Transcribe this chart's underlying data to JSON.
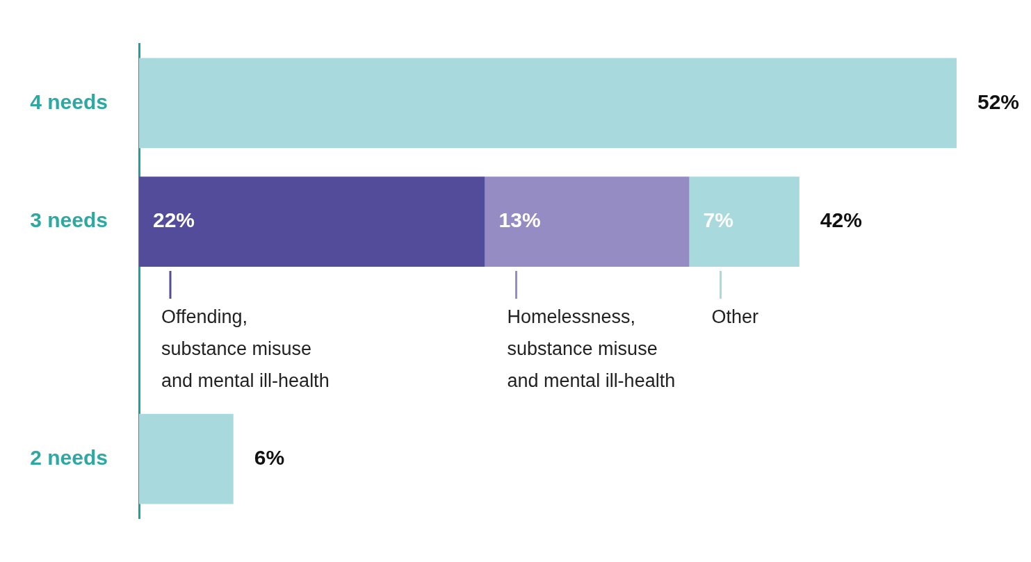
{
  "chart_data": {
    "type": "bar",
    "orientation": "horizontal",
    "stacked": true,
    "categories": [
      "4 needs",
      "3 needs",
      null,
      "2 needs"
    ],
    "series": [
      {
        "name": "Offending, substance misuse and mental ill-health",
        "color": "#524c9a",
        "values": [
          null,
          22,
          null,
          null
        ],
        "value_labels": [
          null,
          "22%",
          null,
          null
        ]
      },
      {
        "name": "Homelessness, substance misuse and mental ill-health",
        "color": "#958cc4",
        "values": [
          null,
          13,
          null,
          null
        ],
        "value_labels": [
          null,
          "13%",
          null,
          null
        ]
      },
      {
        "name": "Other",
        "color": "#a8d9dc",
        "values": [
          null,
          7,
          null,
          null
        ],
        "value_labels": [
          null,
          "7%",
          null,
          null
        ]
      },
      {
        "color": "#a8d9dc",
        "values": [
          52,
          null,
          null,
          6
        ]
      }
    ],
    "totals": [
      "52%",
      "42%",
      null,
      "6%"
    ],
    "xlim": [
      0,
      52
    ],
    "tick_labels": "y",
    "legend": "bottom"
  }
}
